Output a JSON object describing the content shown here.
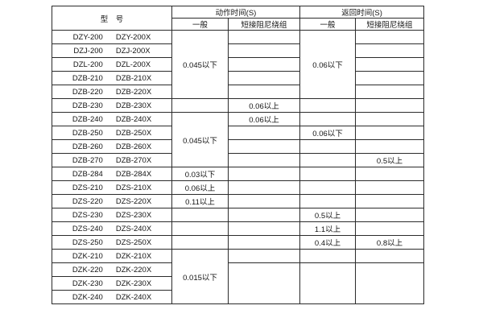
{
  "table": {
    "header": {
      "model": "型　号",
      "action_time": "动作时间(S)",
      "return_time": "返回时间(S)",
      "general_1": "一般",
      "damper_1": "短接阻尼绕组",
      "general_2": "一般",
      "damper_2": "短接阻尼绕组"
    },
    "rows": [
      {
        "a": "DZY-200",
        "b": "DZY-200X"
      },
      {
        "a": "DZJ-200",
        "b": "DZJ-200X"
      },
      {
        "a": "DZL-200",
        "b": "DZL-200X"
      },
      {
        "a": "DZB-210",
        "b": "DZB-210X"
      },
      {
        "a": "DZB-220",
        "b": "DZB-220X"
      },
      {
        "a": "DZB-230",
        "b": "DZB-230X"
      },
      {
        "a": "DZB-240",
        "b": "DZB-240X"
      },
      {
        "a": "DZB-250",
        "b": "DZB-250X"
      },
      {
        "a": "DZB-260",
        "b": "DZB-260X"
      },
      {
        "a": "DZB-270",
        "b": "DZB-270X"
      },
      {
        "a": "DZB-284",
        "b": "DZB-284X"
      },
      {
        "a": "DZS-210",
        "b": "DZS-210X"
      },
      {
        "a": "DZS-220",
        "b": "DZS-220X"
      },
      {
        "a": "DZS-230",
        "b": "DZS-230X"
      },
      {
        "a": "DZS-240",
        "b": "DZS-240X"
      },
      {
        "a": "DZS-250",
        "b": "DZS-250X"
      },
      {
        "a": "DZK-210",
        "b": "DZK-210X"
      },
      {
        "a": "DZK-220",
        "b": "DZK-220X"
      },
      {
        "a": "DZK-230",
        "b": "DZK-230X"
      },
      {
        "a": "DZK-240",
        "b": "DZK-240X"
      }
    ],
    "cells": {
      "action_general": [
        {
          "row": 0,
          "span": 5,
          "text": "0.045以下"
        },
        {
          "row": 5,
          "span": 1,
          "text": ""
        },
        {
          "row": 6,
          "span": 4,
          "text": "0.045以下"
        },
        {
          "row": 10,
          "span": 1,
          "text": "0.03以下"
        },
        {
          "row": 11,
          "span": 1,
          "text": "0.06以上"
        },
        {
          "row": 12,
          "span": 1,
          "text": "0.11以上"
        },
        {
          "row": 13,
          "span": 1,
          "text": ""
        },
        {
          "row": 14,
          "span": 1,
          "text": ""
        },
        {
          "row": 15,
          "span": 1,
          "text": ""
        },
        {
          "row": 16,
          "span": 4,
          "text": "0.015以下"
        }
      ],
      "action_damper": [
        {
          "row": 0,
          "span": 1,
          "text": ""
        },
        {
          "row": 1,
          "span": 1,
          "text": ""
        },
        {
          "row": 2,
          "span": 1,
          "text": ""
        },
        {
          "row": 3,
          "span": 1,
          "text": ""
        },
        {
          "row": 4,
          "span": 1,
          "text": ""
        },
        {
          "row": 5,
          "span": 1,
          "text": "0.06以上"
        },
        {
          "row": 6,
          "span": 1,
          "text": "0.06以上"
        },
        {
          "row": 7,
          "span": 1,
          "text": ""
        },
        {
          "row": 8,
          "span": 1,
          "text": ""
        },
        {
          "row": 9,
          "span": 1,
          "text": ""
        },
        {
          "row": 10,
          "span": 1,
          "text": ""
        },
        {
          "row": 11,
          "span": 1,
          "text": ""
        },
        {
          "row": 12,
          "span": 1,
          "text": ""
        },
        {
          "row": 13,
          "span": 1,
          "text": ""
        },
        {
          "row": 14,
          "span": 1,
          "text": ""
        },
        {
          "row": 15,
          "span": 1,
          "text": ""
        },
        {
          "row": 16,
          "span": 1,
          "text": ""
        },
        {
          "row": 17,
          "span": 3,
          "text": ""
        }
      ],
      "return_general": [
        {
          "row": 0,
          "span": 5,
          "text": "0.06以下"
        },
        {
          "row": 5,
          "span": 1,
          "text": ""
        },
        {
          "row": 6,
          "span": 1,
          "text": ""
        },
        {
          "row": 7,
          "span": 1,
          "text": "0.06以下"
        },
        {
          "row": 8,
          "span": 1,
          "text": ""
        },
        {
          "row": 9,
          "span": 1,
          "text": ""
        },
        {
          "row": 10,
          "span": 1,
          "text": ""
        },
        {
          "row": 11,
          "span": 1,
          "text": ""
        },
        {
          "row": 12,
          "span": 1,
          "text": ""
        },
        {
          "row": 13,
          "span": 1,
          "text": "0.5以上"
        },
        {
          "row": 14,
          "span": 1,
          "text": "1.1以上"
        },
        {
          "row": 15,
          "span": 1,
          "text": "0.4以上"
        },
        {
          "row": 16,
          "span": 1,
          "text": ""
        },
        {
          "row": 17,
          "span": 3,
          "text": ""
        }
      ],
      "return_damper": [
        {
          "row": 0,
          "span": 1,
          "text": ""
        },
        {
          "row": 1,
          "span": 1,
          "text": ""
        },
        {
          "row": 2,
          "span": 1,
          "text": ""
        },
        {
          "row": 3,
          "span": 1,
          "text": ""
        },
        {
          "row": 4,
          "span": 1,
          "text": ""
        },
        {
          "row": 5,
          "span": 1,
          "text": ""
        },
        {
          "row": 6,
          "span": 1,
          "text": ""
        },
        {
          "row": 7,
          "span": 1,
          "text": ""
        },
        {
          "row": 8,
          "span": 1,
          "text": ""
        },
        {
          "row": 9,
          "span": 1,
          "text": "0.5以上"
        },
        {
          "row": 10,
          "span": 1,
          "text": ""
        },
        {
          "row": 11,
          "span": 1,
          "text": ""
        },
        {
          "row": 12,
          "span": 1,
          "text": ""
        },
        {
          "row": 13,
          "span": 1,
          "text": ""
        },
        {
          "row": 14,
          "span": 1,
          "text": ""
        },
        {
          "row": 15,
          "span": 1,
          "text": "0.8以上"
        },
        {
          "row": 16,
          "span": 1,
          "text": ""
        },
        {
          "row": 17,
          "span": 3,
          "text": ""
        }
      ]
    }
  }
}
